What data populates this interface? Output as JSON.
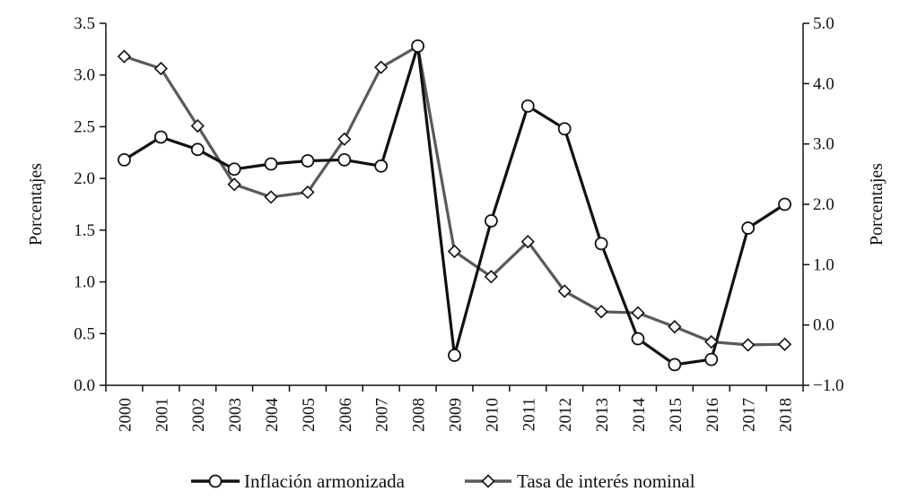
{
  "chart_data": {
    "type": "line",
    "x": [
      "2000",
      "2001",
      "2002",
      "2003",
      "2004",
      "2005",
      "2006",
      "2007",
      "2008",
      "2009",
      "2010",
      "2011",
      "2012",
      "2013",
      "2014",
      "2015",
      "2016",
      "2017",
      "2018"
    ],
    "series": [
      {
        "name": "Inflación armonizada",
        "axis": "left",
        "marker": "circle",
        "color": "#111111",
        "values": [
          2.18,
          2.4,
          2.28,
          2.09,
          2.14,
          2.17,
          2.18,
          2.12,
          3.28,
          0.29,
          1.59,
          2.7,
          2.48,
          1.37,
          0.45,
          0.2,
          0.25,
          1.52,
          1.75
        ]
      },
      {
        "name": "Tasa de interés nominal",
        "axis": "right",
        "marker": "diamond",
        "color": "#5a5a5a",
        "values": [
          4.45,
          4.25,
          3.3,
          2.33,
          2.12,
          2.2,
          3.08,
          4.27,
          4.62,
          1.22,
          0.8,
          1.38,
          0.56,
          0.22,
          0.2,
          -0.03,
          -0.28,
          -0.33,
          -0.32
        ]
      }
    ],
    "ylabel_left": "Porcentajes",
    "ylabel_right": "Porcentajes",
    "ylim_left": [
      0,
      3.5
    ],
    "ylim_right": [
      -1,
      5
    ],
    "yticks_left": [
      "0.0",
      "0.5",
      "1.0",
      "1.5",
      "2.0",
      "2.5",
      "3.0",
      "3.5"
    ],
    "yticks_right": [
      "−1.0",
      "0.0",
      "1.0",
      "2.0",
      "3.0",
      "4.0",
      "5.0"
    ],
    "grid": false,
    "legend_position": "bottom"
  }
}
